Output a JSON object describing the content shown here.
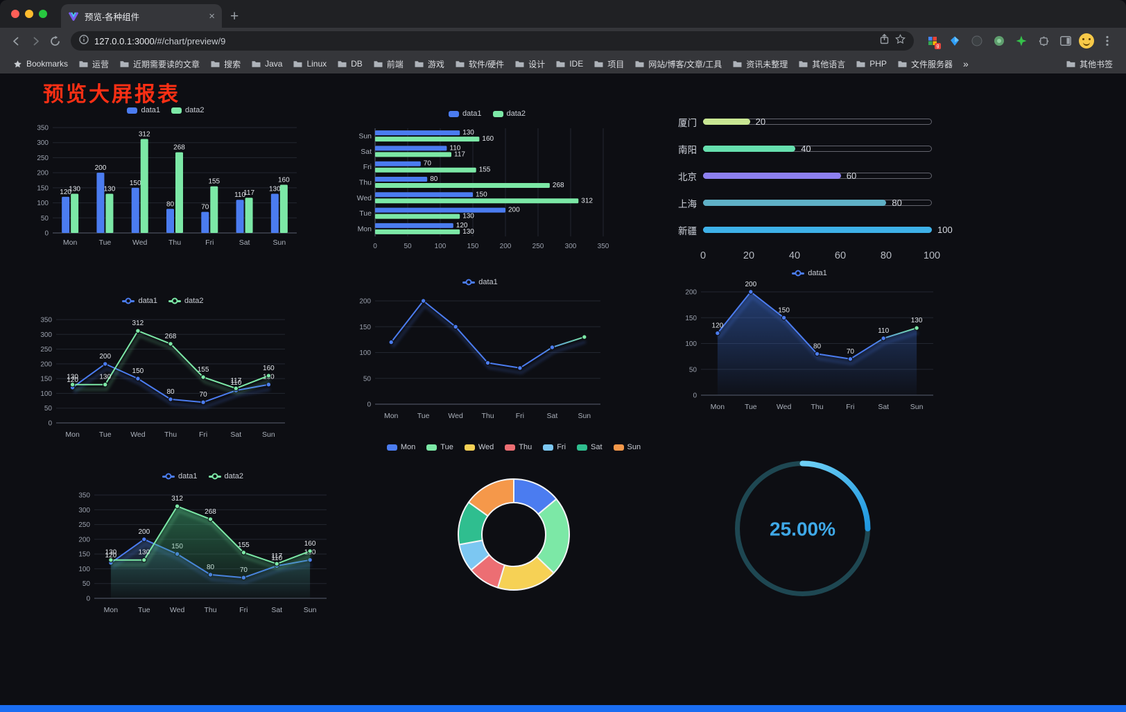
{
  "browser": {
    "tab_title": "预览-各种组件",
    "url_host": "127.0.0.1:3000",
    "url_path": "/#/chart/preview/9",
    "bookmarks_label": "Bookmarks",
    "bookmarks": [
      "运营",
      "近期需要读的文章",
      "搜索",
      "Java",
      "Linux",
      "DB",
      "前端",
      "游戏",
      "软件/硬件",
      "设计",
      "IDE",
      "项目",
      "网站/博客/文章/工具",
      "资讯未整理",
      "其他语言",
      "PHP",
      "文件服务器"
    ],
    "bookmarks_overflow": "»",
    "other_bookmarks": "其他书签"
  },
  "page": {
    "title": "预览大屏报表",
    "title_color": "#fb2f14",
    "accent_blue": "#4b7cf0",
    "accent_green": "#7ce8a6",
    "footer_color": "#1a6df2"
  },
  "chart_data": [
    {
      "id": "grouped-bar",
      "type": "bar",
      "categories": [
        "Mon",
        "Tue",
        "Wed",
        "Thu",
        "Fri",
        "Sat",
        "Sun"
      ],
      "series": [
        {
          "name": "data1",
          "color": "#4b7cf0",
          "values": [
            120,
            200,
            150,
            80,
            70,
            110,
            130
          ]
        },
        {
          "name": "data2",
          "color": "#7ce8a6",
          "values": [
            130,
            130,
            312,
            268,
            155,
            117,
            160
          ]
        }
      ],
      "ylim": [
        0,
        350
      ],
      "ystep": 50,
      "legend": true,
      "data_labels": true
    },
    {
      "id": "grouped-horizontal-bar",
      "type": "hbar",
      "categories": [
        "Mon",
        "Tue",
        "Wed",
        "Thu",
        "Fri",
        "Sat",
        "Sun"
      ],
      "series": [
        {
          "name": "data1",
          "color": "#4b7cf0",
          "values": [
            120,
            200,
            150,
            80,
            70,
            110,
            130
          ]
        },
        {
          "name": "data2",
          "color": "#7ce8a6",
          "values": [
            130,
            130,
            312,
            268,
            155,
            117,
            160
          ]
        }
      ],
      "xlim": [
        0,
        350
      ],
      "xstep": 50,
      "legend": true,
      "data_labels": true
    },
    {
      "id": "city-progress",
      "type": "progress",
      "xlim": [
        0,
        100
      ],
      "axis_ticks": [
        0,
        20,
        40,
        60,
        80,
        100
      ],
      "items": [
        {
          "label": "厦门",
          "value": 20,
          "color": "#c8e693"
        },
        {
          "label": "南阳",
          "value": 40,
          "color": "#66dfae"
        },
        {
          "label": "北京",
          "value": 60,
          "color": "#8d80f0"
        },
        {
          "label": "上海",
          "value": 80,
          "color": "#5fb0c6"
        },
        {
          "label": "新疆",
          "value": 100,
          "color": "#3eb1e8"
        }
      ]
    },
    {
      "id": "line-two-series",
      "type": "line",
      "categories": [
        "Mon",
        "Tue",
        "Wed",
        "Thu",
        "Fri",
        "Sat",
        "Sun"
      ],
      "series": [
        {
          "name": "data1",
          "color": "#4b7cf0",
          "values": [
            120,
            200,
            150,
            80,
            70,
            110,
            130
          ]
        },
        {
          "name": "data2",
          "color": "#7ce8a6",
          "values": [
            130,
            130,
            312,
            268,
            155,
            117,
            160
          ]
        }
      ],
      "ylim": [
        0,
        350
      ],
      "ystep": 50,
      "legend": true,
      "data_labels": true
    },
    {
      "id": "line-gradient",
      "type": "line",
      "categories": [
        "Mon",
        "Tue",
        "Wed",
        "Thu",
        "Fri",
        "Sat",
        "Sun"
      ],
      "series": [
        {
          "name": "data1",
          "color": "#4b7cf0",
          "color2": "#7ce8a6",
          "values": [
            120,
            200,
            150,
            80,
            70,
            110,
            130
          ]
        }
      ],
      "ylim": [
        0,
        200
      ],
      "ystep": 50,
      "legend": true,
      "data_labels": false
    },
    {
      "id": "area-gradient",
      "type": "line",
      "categories": [
        "Mon",
        "Tue",
        "Wed",
        "Thu",
        "Fri",
        "Sat",
        "Sun"
      ],
      "series": [
        {
          "name": "data1",
          "color": "#4b7cf0",
          "color2": "#7ce8a6",
          "area": "#3b6fd4",
          "values": [
            120,
            200,
            150,
            80,
            70,
            110,
            130
          ]
        }
      ],
      "ylim": [
        0,
        200
      ],
      "ystep": 50,
      "legend": true,
      "data_labels": true
    },
    {
      "id": "line-two-series-area",
      "type": "line",
      "categories": [
        "Mon",
        "Tue",
        "Wed",
        "Thu",
        "Fri",
        "Sat",
        "Sun"
      ],
      "series": [
        {
          "name": "data1",
          "color": "#4b7cf0",
          "area": "#33507a",
          "values": [
            120,
            200,
            150,
            80,
            70,
            110,
            130
          ]
        },
        {
          "name": "data2",
          "color": "#7ce8a6",
          "area": "#3fae74",
          "values": [
            130,
            130,
            312,
            268,
            155,
            117,
            160
          ]
        }
      ],
      "ylim": [
        0,
        350
      ],
      "ystep": 50,
      "legend": true,
      "data_labels": true
    },
    {
      "id": "weekday-donut",
      "type": "pie",
      "categories": [
        "Mon",
        "Tue",
        "Wed",
        "Thu",
        "Fri",
        "Sat",
        "Sun"
      ],
      "values": [
        120,
        200,
        150,
        80,
        70,
        110,
        130
      ],
      "colors": [
        "#4b7cf0",
        "#7ce8a6",
        "#f6d155",
        "#ec6e73",
        "#7cc7f2",
        "#2fbe8f",
        "#f5984a"
      ],
      "legend": true
    },
    {
      "id": "percent-gauge",
      "type": "gauge",
      "value": 25,
      "label": "25.00%",
      "color": "#38b2f0",
      "track_color": "#1e4752"
    }
  ]
}
